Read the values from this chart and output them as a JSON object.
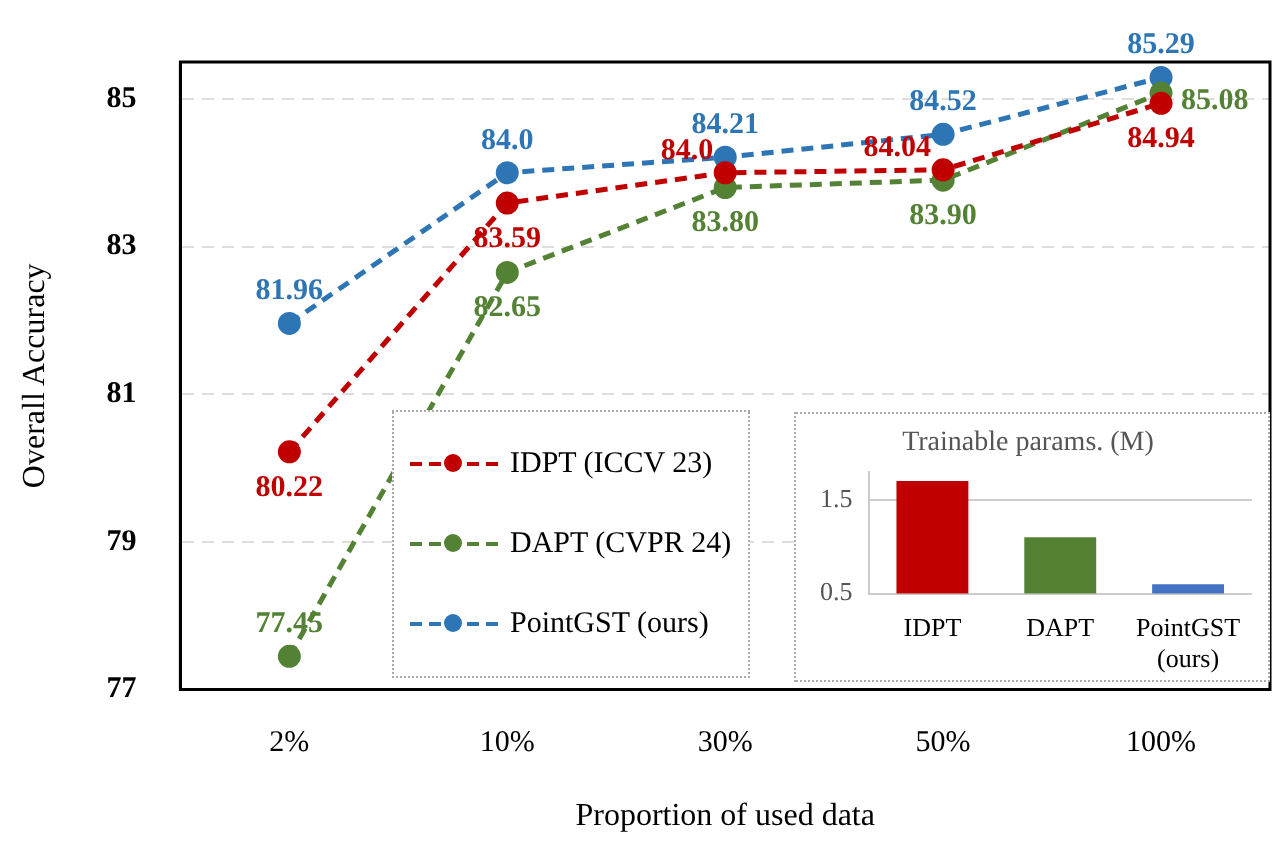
{
  "chart_data": [
    {
      "type": "line",
      "xlabel": "Proportion of used data",
      "ylabel": "Overall Accuracy",
      "categories": [
        "2%",
        "10%",
        "30%",
        "50%",
        "100%"
      ],
      "series": [
        {
          "name": "IDPT (ICCV 23)",
          "color": "#c00000",
          "values": [
            80.22,
            83.59,
            84.0,
            84.04,
            84.94
          ],
          "value_labels": [
            "80.22",
            "83.59",
            "84.0",
            "84.04",
            "84.94"
          ]
        },
        {
          "name": "DAPT (CVPR 24)",
          "color": "#548235",
          "values": [
            77.45,
            82.65,
            83.8,
            83.9,
            85.08
          ],
          "value_labels": [
            "77.45",
            "82.65",
            "83.80",
            "83.90",
            "85.08"
          ]
        },
        {
          "name": "PointGST (ours)",
          "color": "#2e75b6",
          "values": [
            81.96,
            84.0,
            84.21,
            84.52,
            85.29
          ],
          "value_labels": [
            "81.96",
            "84.0",
            "84.21",
            "84.52",
            "85.29"
          ]
        }
      ],
      "ylim": [
        77,
        85.5
      ],
      "yticks": [
        77,
        79,
        81,
        83,
        85
      ],
      "grid": "y",
      "legend": "bottom left",
      "marker": "circle",
      "line_style": "dashed"
    },
    {
      "type": "bar",
      "title": "Trainable params. (M)",
      "categories": [
        "IDPT",
        "DAPT",
        "PointGST (ours)"
      ],
      "values": [
        1.7,
        1.1,
        0.6
      ],
      "colors": [
        "#c00000",
        "#548235",
        "#4472c4"
      ],
      "ylim": [
        0.5,
        1.8
      ],
      "yticks": [
        0.5,
        1.5
      ],
      "grid": "y"
    }
  ]
}
